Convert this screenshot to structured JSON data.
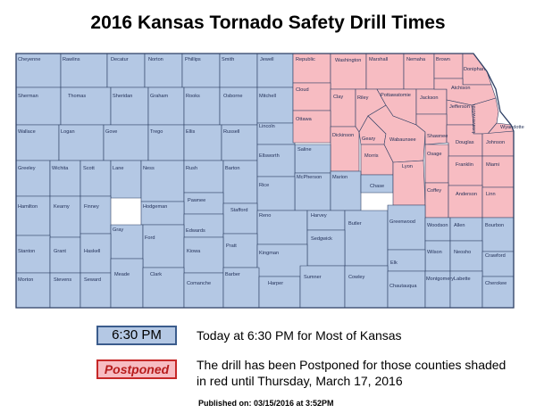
{
  "title": "2016 Kansas Tornado Safety Drill Times",
  "colors": {
    "drill_now": "#b4c8e4",
    "postponed": "#f7bcc2",
    "border": "#2c3e63"
  },
  "legend": {
    "drill_now_label": "6:30 PM",
    "drill_now_text": "Today at 6:30 PM for Most of Kansas",
    "postponed_label": "Postponed",
    "postponed_text": "The drill has been Postponed for those counties shaded in red until Thursday, March 17, 2016"
  },
  "published": "Published on: 03/15/2016 at 3:52PM",
  "counties": [
    {
      "name": "Cheyenne",
      "status": "drill"
    },
    {
      "name": "Rawlins",
      "status": "drill"
    },
    {
      "name": "Decatur",
      "status": "drill"
    },
    {
      "name": "Norton",
      "status": "drill"
    },
    {
      "name": "Phillips",
      "status": "drill"
    },
    {
      "name": "Smith",
      "status": "drill"
    },
    {
      "name": "Jewell",
      "status": "drill"
    },
    {
      "name": "Republic",
      "status": "postponed"
    },
    {
      "name": "Washington",
      "status": "postponed"
    },
    {
      "name": "Marshall",
      "status": "postponed"
    },
    {
      "name": "Nemaha",
      "status": "postponed"
    },
    {
      "name": "Brown",
      "status": "postponed"
    },
    {
      "name": "Doniphan",
      "status": "postponed"
    },
    {
      "name": "Sherman",
      "status": "drill"
    },
    {
      "name": "Thomas",
      "status": "drill"
    },
    {
      "name": "Sheridan",
      "status": "drill"
    },
    {
      "name": "Graham",
      "status": "drill"
    },
    {
      "name": "Rooks",
      "status": "drill"
    },
    {
      "name": "Osborne",
      "status": "drill"
    },
    {
      "name": "Mitchell",
      "status": "drill"
    },
    {
      "name": "Cloud",
      "status": "postponed"
    },
    {
      "name": "Clay",
      "status": "postponed"
    },
    {
      "name": "Riley",
      "status": "postponed"
    },
    {
      "name": "Pottawatomie",
      "status": "postponed"
    },
    {
      "name": "Jackson",
      "status": "postponed"
    },
    {
      "name": "Atchison",
      "status": "postponed"
    },
    {
      "name": "Jefferson",
      "status": "postponed"
    },
    {
      "name": "Leavenworth",
      "status": "postponed"
    },
    {
      "name": "Wyandotte",
      "status": "postponed"
    },
    {
      "name": "Wallace",
      "status": "drill"
    },
    {
      "name": "Logan",
      "status": "drill"
    },
    {
      "name": "Gove",
      "status": "drill"
    },
    {
      "name": "Trego",
      "status": "drill"
    },
    {
      "name": "Ellis",
      "status": "drill"
    },
    {
      "name": "Russell",
      "status": "drill"
    },
    {
      "name": "Lincoln",
      "status": "drill"
    },
    {
      "name": "Ottawa",
      "status": "postponed"
    },
    {
      "name": "Dickinson",
      "status": "postponed"
    },
    {
      "name": "Geary",
      "status": "postponed"
    },
    {
      "name": "Wabaunsee",
      "status": "postponed"
    },
    {
      "name": "Shawnee",
      "status": "postponed"
    },
    {
      "name": "Douglas",
      "status": "postponed"
    },
    {
      "name": "Johnson",
      "status": "postponed"
    },
    {
      "name": "Saline",
      "status": "drill"
    },
    {
      "name": "Morris",
      "status": "postponed"
    },
    {
      "name": "Greeley",
      "status": "drill"
    },
    {
      "name": "Wichita",
      "status": "drill"
    },
    {
      "name": "Scott",
      "status": "drill"
    },
    {
      "name": "Lane",
      "status": "drill"
    },
    {
      "name": "Ness",
      "status": "drill"
    },
    {
      "name": "Rush",
      "status": "drill"
    },
    {
      "name": "Barton",
      "status": "drill"
    },
    {
      "name": "Ellsworth",
      "status": "drill"
    },
    {
      "name": "McPherson",
      "status": "drill"
    },
    {
      "name": "Marion",
      "status": "drill"
    },
    {
      "name": "Chase",
      "status": "drill"
    },
    {
      "name": "Lyon",
      "status": "postponed"
    },
    {
      "name": "Osage",
      "status": "postponed"
    },
    {
      "name": "Franklin",
      "status": "postponed"
    },
    {
      "name": "Miami",
      "status": "postponed"
    },
    {
      "name": "Pawnee",
      "status": "drill"
    },
    {
      "name": "Rice",
      "status": "drill"
    },
    {
      "name": "Coffey",
      "status": "postponed"
    },
    {
      "name": "Anderson",
      "status": "postponed"
    },
    {
      "name": "Linn",
      "status": "postponed"
    },
    {
      "name": "Hamilton",
      "status": "drill"
    },
    {
      "name": "Kearny",
      "status": "drill"
    },
    {
      "name": "Finney",
      "status": "drill"
    },
    {
      "name": "Hodgeman",
      "status": "drill"
    },
    {
      "name": "Stafford",
      "status": "drill"
    },
    {
      "name": "Reno",
      "status": "drill"
    },
    {
      "name": "Harvey",
      "status": "drill"
    },
    {
      "name": "Butler",
      "status": "drill"
    },
    {
      "name": "Greenwood",
      "status": "drill"
    },
    {
      "name": "Woodson",
      "status": "drill"
    },
    {
      "name": "Allen",
      "status": "drill"
    },
    {
      "name": "Bourbon",
      "status": "drill"
    },
    {
      "name": "Gray",
      "status": "drill"
    },
    {
      "name": "Edwards",
      "status": "drill"
    },
    {
      "name": "Ford",
      "status": "drill"
    },
    {
      "name": "Sedgwick",
      "status": "drill"
    },
    {
      "name": "Pratt",
      "status": "drill"
    },
    {
      "name": "Kiowa",
      "status": "drill"
    },
    {
      "name": "Stanton",
      "status": "drill"
    },
    {
      "name": "Grant",
      "status": "drill"
    },
    {
      "name": "Haskell",
      "status": "drill"
    },
    {
      "name": "Kingman",
      "status": "drill"
    },
    {
      "name": "Wilson",
      "status": "drill"
    },
    {
      "name": "Neosho",
      "status": "drill"
    },
    {
      "name": "Crawford",
      "status": "drill"
    },
    {
      "name": "Elk",
      "status": "drill"
    },
    {
      "name": "Morton",
      "status": "drill"
    },
    {
      "name": "Stevens",
      "status": "drill"
    },
    {
      "name": "Seward",
      "status": "drill"
    },
    {
      "name": "Meade",
      "status": "drill"
    },
    {
      "name": "Clark",
      "status": "drill"
    },
    {
      "name": "Comanche",
      "status": "drill"
    },
    {
      "name": "Barber",
      "status": "drill"
    },
    {
      "name": "Harper",
      "status": "drill"
    },
    {
      "name": "Sumner",
      "status": "drill"
    },
    {
      "name": "Cowley",
      "status": "drill"
    },
    {
      "name": "Chautauqua",
      "status": "drill"
    },
    {
      "name": "Montgomery",
      "status": "drill"
    },
    {
      "name": "Labette",
      "status": "drill"
    },
    {
      "name": "Cherokee",
      "status": "drill"
    }
  ]
}
